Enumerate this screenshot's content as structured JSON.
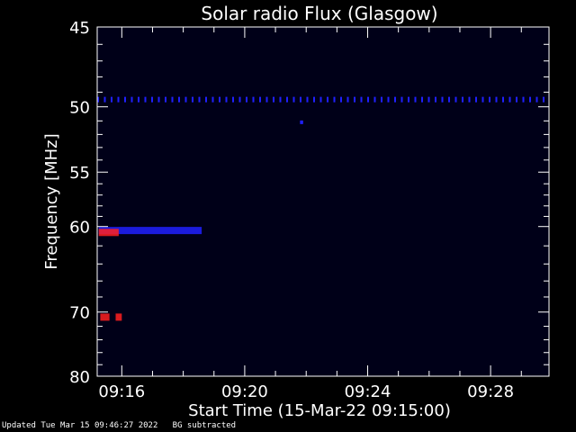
{
  "chart_data": {
    "type": "heatmap",
    "title": "Solar radio Flux (Glasgow)",
    "xlabel": "Start Time (15-Mar-22 09:15:00)",
    "ylabel": "Frequency [MHz]",
    "x_tick_labels": [
      "09:16",
      "09:20",
      "09:24",
      "09:28"
    ],
    "x_tick_minutes": [
      16,
      20,
      24,
      28
    ],
    "xlim_minutes": [
      15.2,
      29.9
    ],
    "y_tick_labels": [
      "45",
      "50",
      "55",
      "60",
      "70",
      "80"
    ],
    "y_tick_values": [
      45,
      50,
      55,
      60,
      70,
      80
    ],
    "y_minor_values": [
      46,
      47,
      48,
      49,
      51,
      52,
      53,
      54,
      56,
      57,
      58,
      59,
      62,
      64,
      66,
      68,
      72,
      74,
      76,
      78
    ],
    "ylim": [
      45,
      80
    ],
    "y_scale": "reciprocal",
    "colors": {
      "background": "#000000",
      "frame": "#ffffff",
      "field": "#000018",
      "blue": "#2020ff",
      "red": "#ff2020"
    },
    "features": [
      {
        "kind": "band",
        "freq": 49.5,
        "t_start": 15.2,
        "t_end": 29.9,
        "color": "blue"
      },
      {
        "kind": "blob",
        "freq": 60.4,
        "t_start": 15.25,
        "t_end": 18.6,
        "color": "blue"
      },
      {
        "kind": "blob",
        "freq": 60.6,
        "t_start": 15.25,
        "t_end": 15.9,
        "color": "red"
      },
      {
        "kind": "blob",
        "freq": 70.7,
        "t_start": 15.3,
        "t_end": 15.6,
        "color": "red"
      },
      {
        "kind": "blob",
        "freq": 70.7,
        "t_start": 15.8,
        "t_end": 16.0,
        "color": "red"
      },
      {
        "kind": "dot",
        "freq": 51.1,
        "t_start": 21.8,
        "t_end": 21.9,
        "color": "blue"
      }
    ]
  },
  "footer": {
    "updated": "Updated Tue Mar 15 09:46:27 2022",
    "note": "BG subtracted"
  }
}
